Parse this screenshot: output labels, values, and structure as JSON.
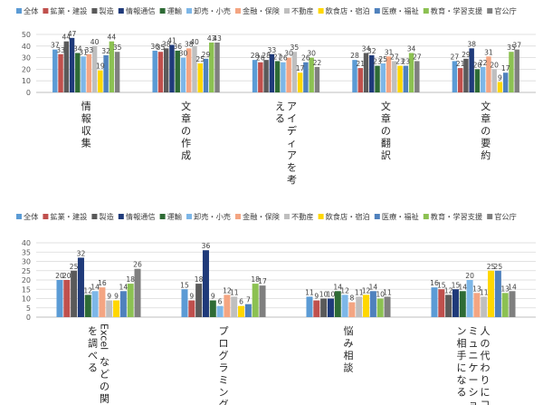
{
  "chart_data": [
    {
      "type": "bar",
      "ylim": [
        0,
        50
      ],
      "yticks": [
        0,
        10,
        20,
        30,
        40,
        50
      ],
      "grid": true,
      "legend_position": "top",
      "categories": [
        "情報収集",
        "文章の作成",
        "アイディアを考える",
        "文章の翻訳",
        "文章の要約"
      ],
      "series": [
        {
          "name": "全体",
          "color": "#5B9BD5",
          "values": [
            37,
            36,
            28,
            28,
            27
          ]
        },
        {
          "name": "鉱業・建設",
          "color": "#C0504D",
          "values": [
            33,
            35,
            26,
            21,
            21
          ]
        },
        {
          "name": "製造",
          "color": "#5A5A5A",
          "values": [
            44,
            38,
            28,
            34,
            29
          ]
        },
        {
          "name": "情報通信",
          "color": "#1F3A7A",
          "values": [
            47,
            41,
            33,
            32,
            38
          ]
        },
        {
          "name": "運輸",
          "color": "#2E6B35",
          "values": [
            34,
            36,
            27,
            23,
            20
          ]
        },
        {
          "name": "卸売・小売",
          "color": "#7DB7E8",
          "values": [
            31,
            30,
            26,
            25,
            22
          ]
        },
        {
          "name": "金融・保険",
          "color": "#F4A582",
          "values": [
            33,
            38,
            30,
            31,
            31
          ]
        },
        {
          "name": "不動産",
          "color": "#BFBFBF",
          "values": [
            40,
            40,
            35,
            27,
            20
          ]
        },
        {
          "name": "飲食店・宿泊",
          "color": "#FFD700",
          "values": [
            19,
            25,
            17,
            23,
            9
          ]
        },
        {
          "name": "医療・福祉",
          "color": "#4F81BD",
          "values": [
            32,
            29,
            26,
            23,
            17
          ]
        },
        {
          "name": "教育・学習支援",
          "color": "#8CC152",
          "values": [
            44,
            43,
            30,
            34,
            35
          ]
        },
        {
          "name": "官公庁",
          "color": "#7F7F7F",
          "values": [
            35,
            43,
            22,
            27,
            37
          ]
        }
      ]
    },
    {
      "type": "bar",
      "ylim": [
        0,
        40
      ],
      "yticks": [
        0,
        5,
        10,
        15,
        20,
        25,
        30,
        35,
        40
      ],
      "grid": true,
      "legend_position": "top",
      "categories": [
        "Excelなどの関数を調べる",
        "プログラミング",
        "悩み相談",
        "人の代わりにコミュニケーション相手になる"
      ],
      "series": [
        {
          "name": "全体",
          "color": "#5B9BD5",
          "values": [
            20,
            15,
            11,
            16
          ]
        },
        {
          "name": "鉱業・建設",
          "color": "#C0504D",
          "values": [
            20,
            9,
            9,
            15
          ]
        },
        {
          "name": "製造",
          "color": "#5A5A5A",
          "values": [
            25,
            18,
            10,
            12
          ]
        },
        {
          "name": "情報通信",
          "color": "#1F3A7A",
          "values": [
            32,
            36,
            10,
            15
          ]
        },
        {
          "name": "運輸",
          "color": "#2E6B35",
          "values": [
            12,
            9,
            14,
            14
          ]
        },
        {
          "name": "卸売・小売",
          "color": "#7DB7E8",
          "values": [
            14,
            6,
            12,
            20
          ]
        },
        {
          "name": "金融・保険",
          "color": "#F4A582",
          "values": [
            16,
            12,
            8,
            13
          ]
        },
        {
          "name": "不動産",
          "color": "#BFBFBF",
          "values": [
            9,
            11,
            11,
            11
          ]
        },
        {
          "name": "飲食店・宿泊",
          "color": "#FFD700",
          "values": [
            9,
            6,
            12,
            25
          ]
        },
        {
          "name": "医療・福祉",
          "color": "#4F81BD",
          "values": [
            14,
            7,
            14,
            25
          ]
        },
        {
          "name": "教育・学習支援",
          "color": "#8CC152",
          "values": [
            18,
            18,
            10,
            13
          ]
        },
        {
          "name": "官公庁",
          "color": "#7F7F7F",
          "values": [
            26,
            17,
            11,
            14
          ]
        }
      ]
    }
  ]
}
